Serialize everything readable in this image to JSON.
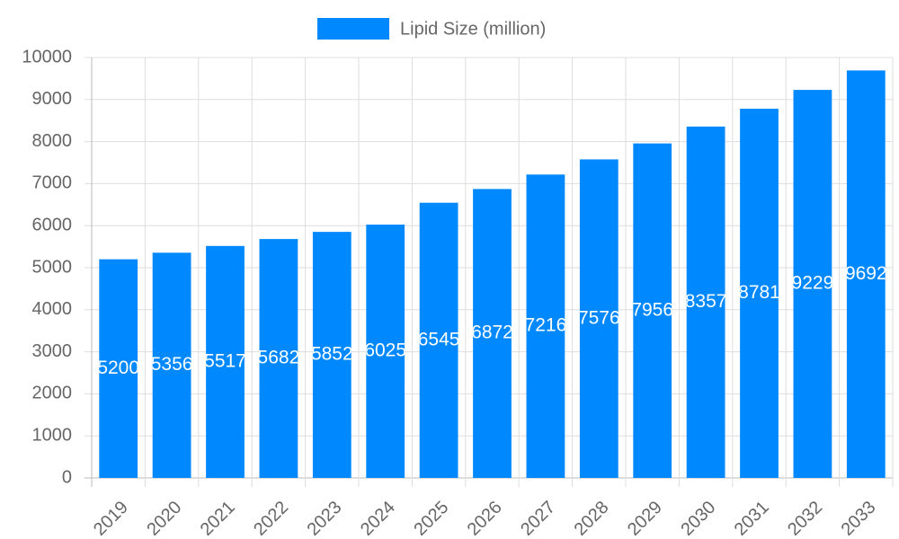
{
  "chart_data": {
    "type": "bar",
    "legend": "Lipid Size (million)",
    "categories": [
      "2019",
      "2020",
      "2021",
      "2022",
      "2023",
      "2024",
      "2025",
      "2026",
      "2027",
      "2028",
      "2029",
      "2030",
      "2031",
      "2032",
      "2033"
    ],
    "values": [
      5200,
      5356,
      5517,
      5682,
      5852,
      6025,
      6545,
      6872,
      7216,
      7576,
      7956,
      8357,
      8781,
      9229,
      9692
    ],
    "color": "#0088ff",
    "ylim": [
      0,
      10000
    ],
    "yticks": [
      0,
      1000,
      2000,
      3000,
      4000,
      5000,
      6000,
      7000,
      8000,
      9000,
      10000
    ],
    "grid": true
  }
}
